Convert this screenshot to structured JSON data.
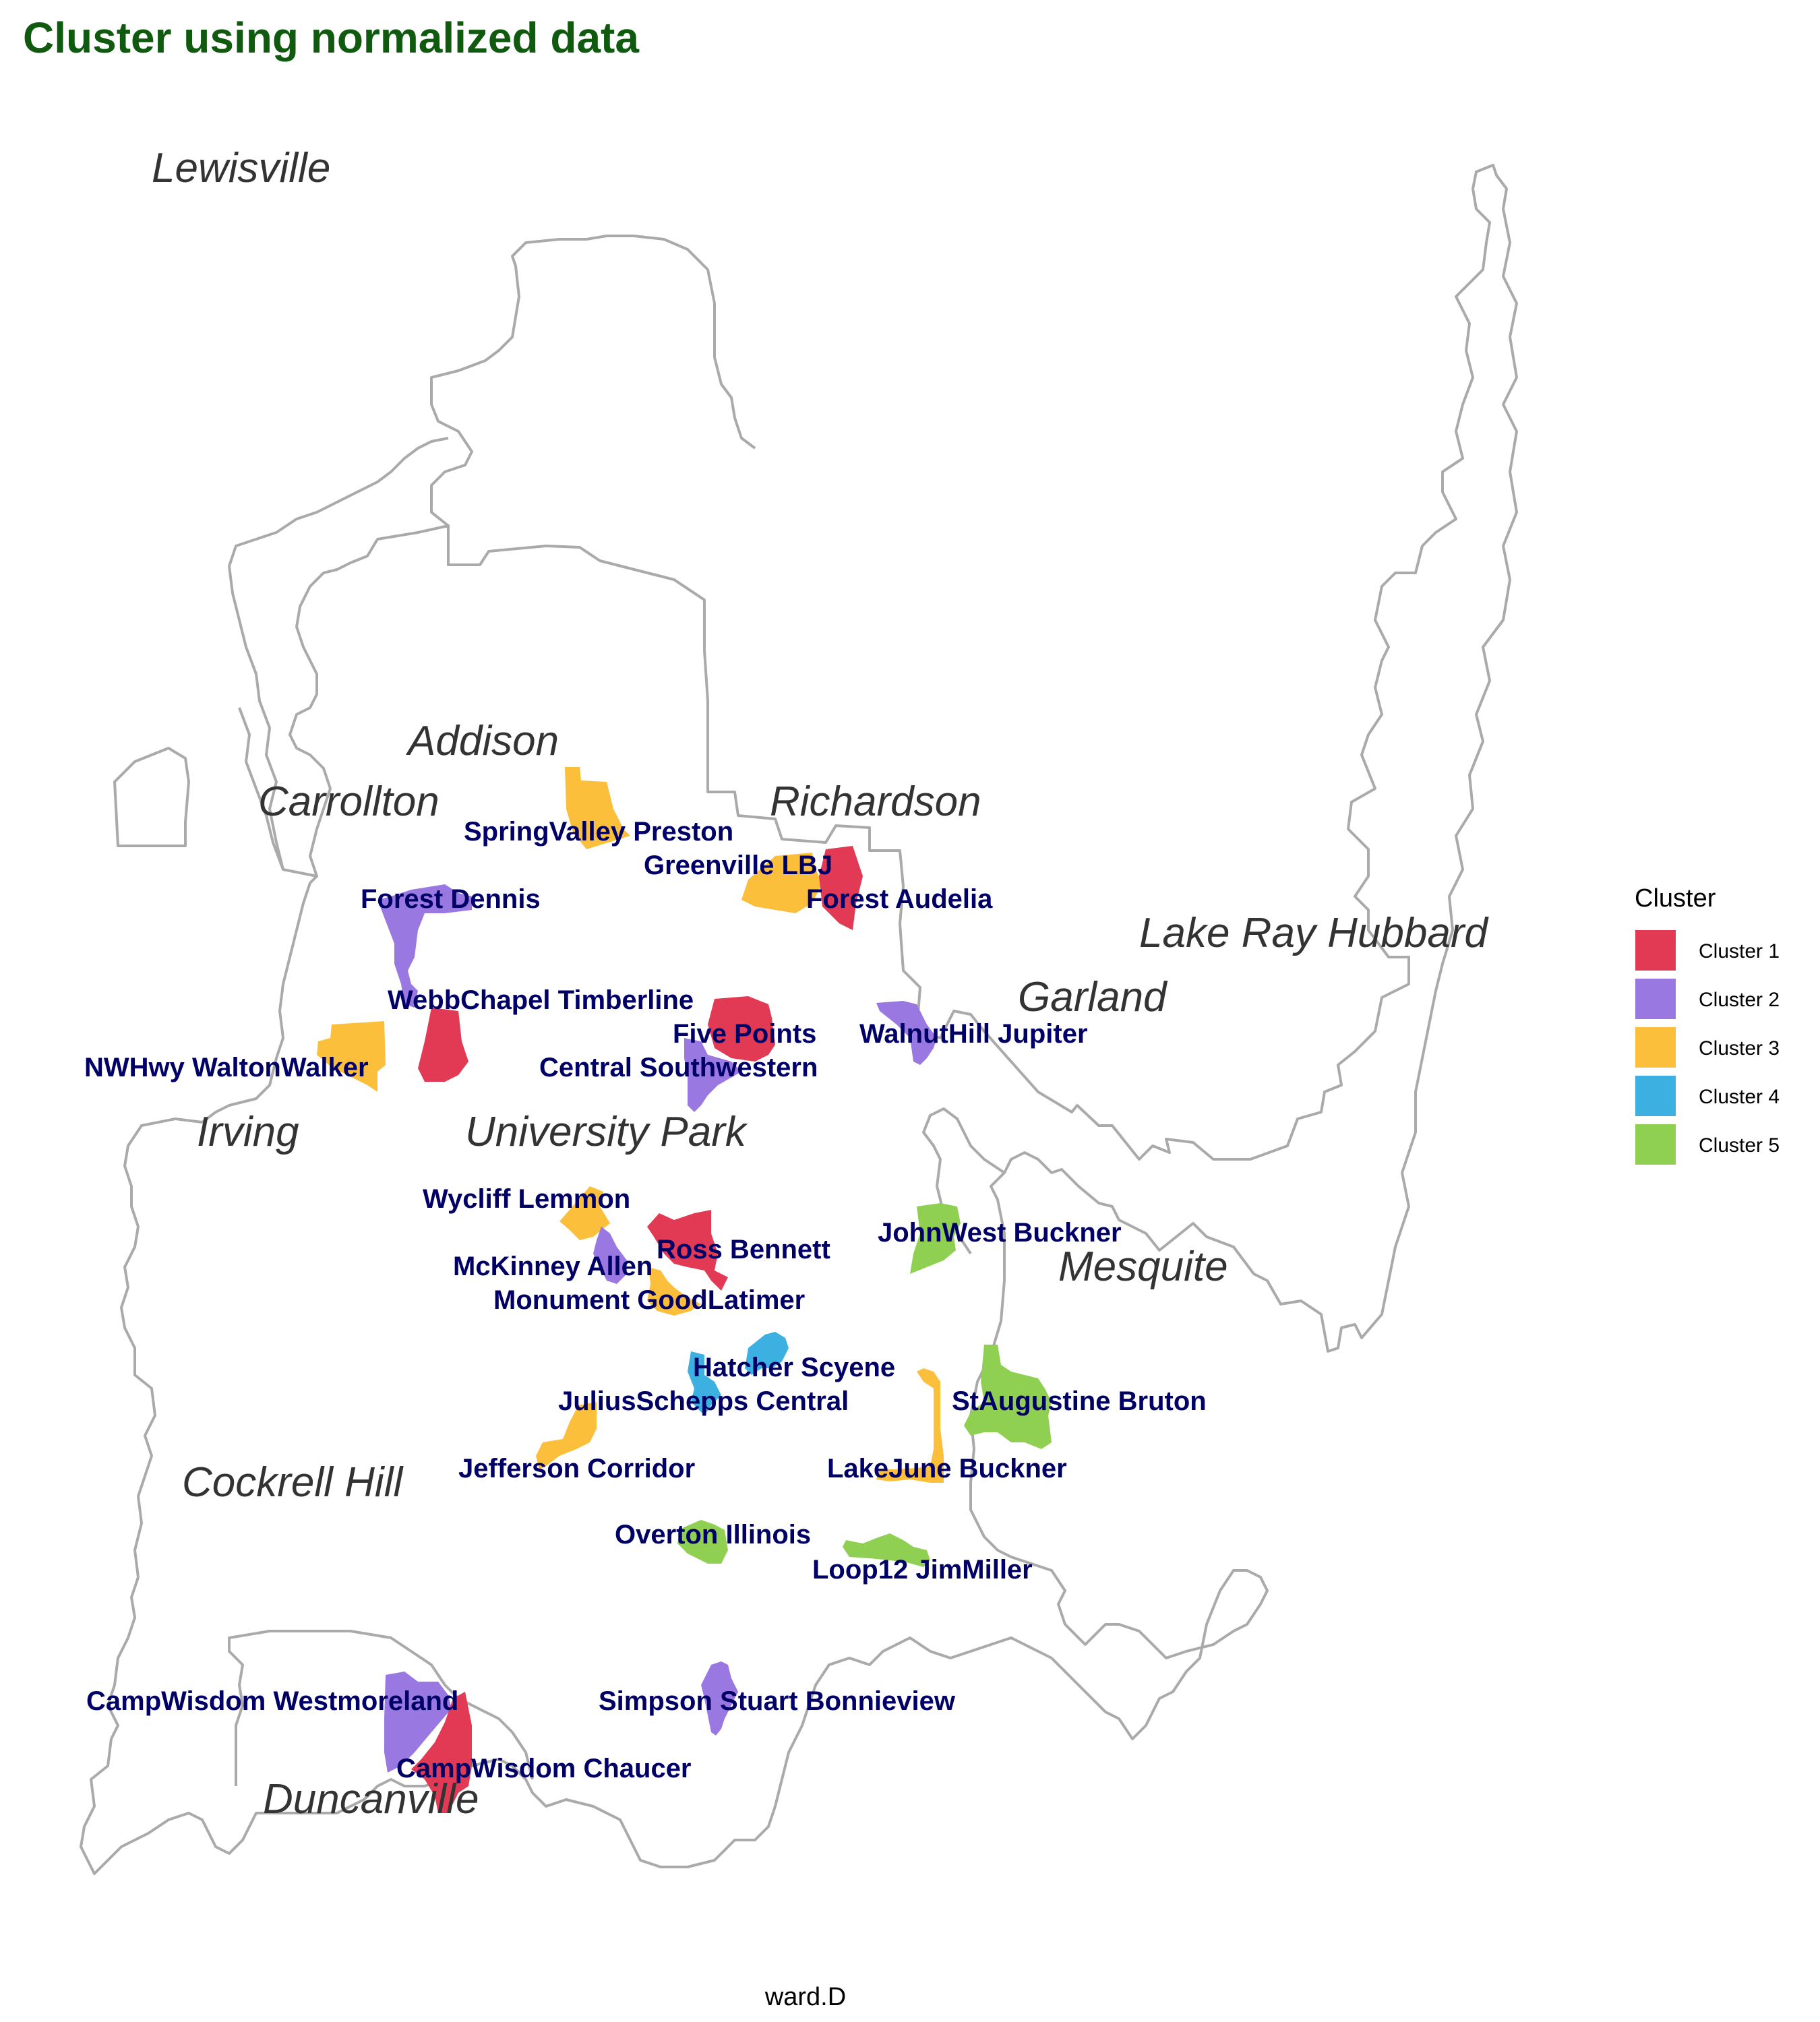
{
  "title": "Cluster using normalized data",
  "caption": "ward.D",
  "colors": {
    "title": "#0f5a0f",
    "outline": "#aaaaaa",
    "label": "#000066",
    "city": "#333333"
  },
  "legend": {
    "title": "Cluster",
    "items": [
      {
        "label": "Cluster 1",
        "color": "#e23a55"
      },
      {
        "label": "Cluster 2",
        "color": "#9a78e2"
      },
      {
        "label": "Cluster 3",
        "color": "#fbbf3c"
      },
      {
        "label": "Cluster 4",
        "color": "#3db0e2"
      },
      {
        "label": "Cluster 5",
        "color": "#8fcf52"
      }
    ]
  },
  "cities": [
    "Lewisville",
    "Addison",
    "Carrollton",
    "Richardson",
    "Lake Ray Hubbard",
    "Garland",
    "Irving",
    "University Park",
    "Mesquite",
    "Cockrell Hill",
    "Duncanville"
  ],
  "areas": [
    {
      "name": "SpringValley Preston",
      "cluster": 3
    },
    {
      "name": "Greenville LBJ",
      "cluster": 3
    },
    {
      "name": "Forest Audelia",
      "cluster": 1
    },
    {
      "name": "Forest Dennis",
      "cluster": 2
    },
    {
      "name": "WebbChapel Timberline",
      "cluster": 1
    },
    {
      "name": "NWHwy WaltonWalker",
      "cluster": 3
    },
    {
      "name": "Five Points",
      "cluster": 1
    },
    {
      "name": "WalnutHill Jupiter",
      "cluster": 2
    },
    {
      "name": "Central Southwestern",
      "cluster": 2
    },
    {
      "name": "Wycliff Lemmon",
      "cluster": 3
    },
    {
      "name": "Ross Bennett",
      "cluster": 1
    },
    {
      "name": "McKinney Allen",
      "cluster": 2
    },
    {
      "name": "Monument GoodLatimer",
      "cluster": 3
    },
    {
      "name": "JohnWest Buckner",
      "cluster": 5
    },
    {
      "name": "Hatcher Scyene",
      "cluster": 4
    },
    {
      "name": "JuliusSchepps Central",
      "cluster": 4
    },
    {
      "name": "StAugustine Bruton",
      "cluster": 5
    },
    {
      "name": "Jefferson Corridor",
      "cluster": 3
    },
    {
      "name": "LakeJune Buckner",
      "cluster": 3
    },
    {
      "name": "Overton Illinois",
      "cluster": 5
    },
    {
      "name": "Loop12 JimMiller",
      "cluster": 5
    },
    {
      "name": "CampWisdom Westmoreland",
      "cluster": 2
    },
    {
      "name": "Simpson Stuart Bonnieview",
      "cluster": 2
    },
    {
      "name": "CampWisdom Chaucer",
      "cluster": 1
    }
  ]
}
